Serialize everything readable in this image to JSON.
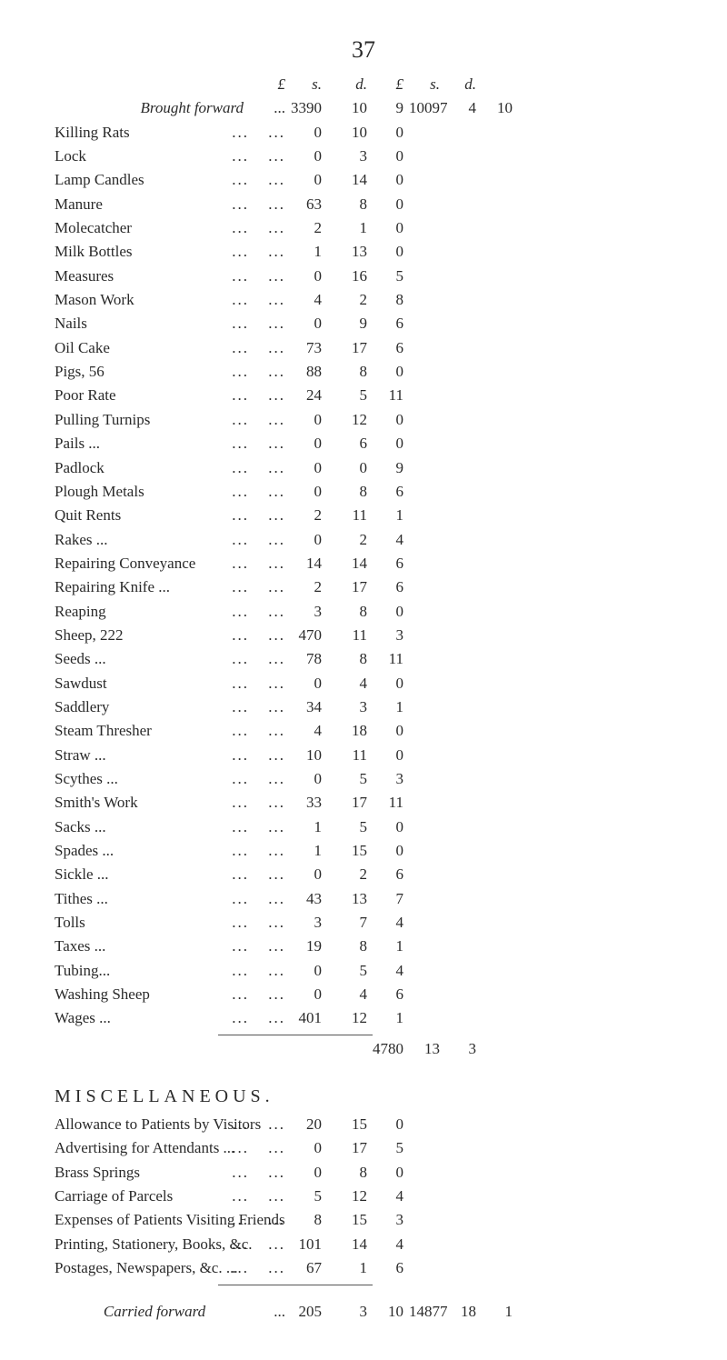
{
  "page_number": "37",
  "col_headers": {
    "L": "£",
    "s": "s.",
    "d": "d."
  },
  "brought_forward_label": "Brought forward",
  "brought_forward": {
    "L1": "3390",
    "s1": "10",
    "d1": "9",
    "L2": "10097",
    "s2": "4",
    "d2": "10"
  },
  "items": [
    {
      "label": "Killing Rats",
      "L": "0",
      "s": "10",
      "d": "0"
    },
    {
      "label": "Lock",
      "L": "0",
      "s": "3",
      "d": "0"
    },
    {
      "label": "Lamp Candles",
      "L": "0",
      "s": "14",
      "d": "0"
    },
    {
      "label": "Manure",
      "L": "63",
      "s": "8",
      "d": "0"
    },
    {
      "label": "Molecatcher",
      "L": "2",
      "s": "1",
      "d": "0"
    },
    {
      "label": "Milk Bottles",
      "L": "1",
      "s": "13",
      "d": "0"
    },
    {
      "label": "Measures",
      "L": "0",
      "s": "16",
      "d": "5"
    },
    {
      "label": "Mason Work",
      "L": "4",
      "s": "2",
      "d": "8"
    },
    {
      "label": "Nails",
      "L": "0",
      "s": "9",
      "d": "6"
    },
    {
      "label": "Oil Cake",
      "L": "73",
      "s": "17",
      "d": "6"
    },
    {
      "label": "Pigs, 56",
      "L": "88",
      "s": "8",
      "d": "0"
    },
    {
      "label": "Poor Rate",
      "L": "24",
      "s": "5",
      "d": "11"
    },
    {
      "label": "Pulling Turnips",
      "L": "0",
      "s": "12",
      "d": "0"
    },
    {
      "label": "Pails ...",
      "L": "0",
      "s": "6",
      "d": "0"
    },
    {
      "label": "Padlock",
      "L": "0",
      "s": "0",
      "d": "9"
    },
    {
      "label": "Plough Metals",
      "L": "0",
      "s": "8",
      "d": "6"
    },
    {
      "label": "Quit Rents",
      "L": "2",
      "s": "11",
      "d": "1"
    },
    {
      "label": "Rakes ...",
      "L": "0",
      "s": "2",
      "d": "4"
    },
    {
      "label": "Repairing Conveyance",
      "L": "14",
      "s": "14",
      "d": "6"
    },
    {
      "label": "Repairing Knife ...",
      "L": "2",
      "s": "17",
      "d": "6"
    },
    {
      "label": "Reaping",
      "L": "3",
      "s": "8",
      "d": "0"
    },
    {
      "label": "Sheep, 222",
      "L": "470",
      "s": "11",
      "d": "3"
    },
    {
      "label": "Seeds ...",
      "L": "78",
      "s": "8",
      "d": "11"
    },
    {
      "label": "Sawdust",
      "L": "0",
      "s": "4",
      "d": "0"
    },
    {
      "label": "Saddlery",
      "L": "34",
      "s": "3",
      "d": "1"
    },
    {
      "label": "Steam Thresher",
      "L": "4",
      "s": "18",
      "d": "0"
    },
    {
      "label": "Straw ...",
      "L": "10",
      "s": "11",
      "d": "0"
    },
    {
      "label": "Scythes ...",
      "L": "0",
      "s": "5",
      "d": "3"
    },
    {
      "label": "Smith's Work",
      "L": "33",
      "s": "17",
      "d": "11"
    },
    {
      "label": "Sacks ...",
      "L": "1",
      "s": "5",
      "d": "0"
    },
    {
      "label": "Spades ...",
      "L": "1",
      "s": "15",
      "d": "0"
    },
    {
      "label": "Sickle ...",
      "L": "0",
      "s": "2",
      "d": "6"
    },
    {
      "label": "Tithes ...",
      "L": "43",
      "s": "13",
      "d": "7"
    },
    {
      "label": "Tolls",
      "L": "3",
      "s": "7",
      "d": "4"
    },
    {
      "label": "Taxes ...",
      "L": "19",
      "s": "8",
      "d": "1"
    },
    {
      "label": "Tubing...",
      "L": "0",
      "s": "5",
      "d": "4"
    },
    {
      "label": "Washing Sheep",
      "L": "0",
      "s": "4",
      "d": "6"
    },
    {
      "label": "Wages ...",
      "L": "401",
      "s": "12",
      "d": "1"
    }
  ],
  "subtotal1": {
    "L": "4780",
    "s": "13",
    "d": "3"
  },
  "misc_heading": "MISCELLANEOUS.",
  "misc_items": [
    {
      "label": "Allowance to Patients by Visitors",
      "L": "20",
      "s": "15",
      "d": "0"
    },
    {
      "label": "Advertising for Attendants ...",
      "L": "0",
      "s": "17",
      "d": "5"
    },
    {
      "label": "Brass Springs",
      "L": "0",
      "s": "8",
      "d": "0"
    },
    {
      "label": "Carriage of Parcels",
      "L": "5",
      "s": "12",
      "d": "4"
    },
    {
      "label": "Expenses of Patients Visiting Friends",
      "L": "8",
      "s": "15",
      "d": "3"
    },
    {
      "label": "Printing, Stationery, Books, &c.",
      "L": "101",
      "s": "14",
      "d": "4"
    },
    {
      "label": "Postages, Newspapers, &c. ...",
      "L": "67",
      "s": "1",
      "d": "6"
    }
  ],
  "carried_forward_label": "Carried forward",
  "carried_forward": {
    "L1": "205",
    "s1": "3",
    "d1": "10",
    "L2": "14877",
    "s2": "18",
    "d2": "1"
  }
}
